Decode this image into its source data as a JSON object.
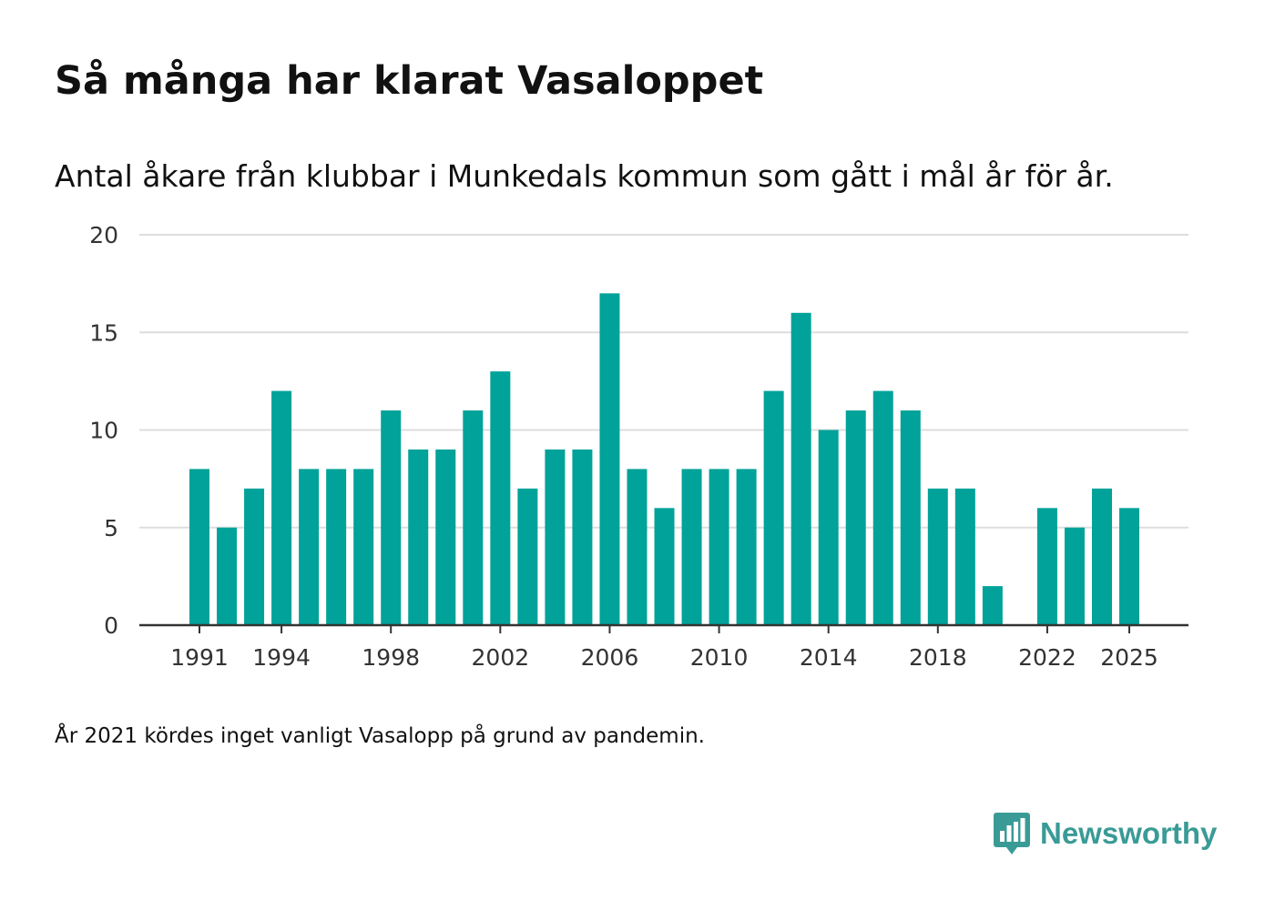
{
  "header": {
    "title": "Så många har klarat Vasaloppet",
    "subtitle": "Antal åkare från klubbar i Munkedals kommun som gått i mål år för år."
  },
  "footer": {
    "note": "År 2021 kördes inget vanligt Vasalopp på grund av pandemin.",
    "logo_text": "Newsworthy",
    "logo_icon": "bar-chart-bubble-icon"
  },
  "colors": {
    "bar": "#00a29a",
    "grid": "#dddddd",
    "axis": "#333333",
    "text": "#111111",
    "tick_text": "#333333",
    "logo": "#3a9b96"
  },
  "chart_data": {
    "type": "bar",
    "title": "Så många har klarat Vasaloppet",
    "subtitle": "Antal åkare från klubbar i Munkedals kommun som gått i mål år för år.",
    "xlabel": "",
    "ylabel": "",
    "categories": [
      1991,
      1992,
      1993,
      1994,
      1995,
      1996,
      1997,
      1998,
      1999,
      2000,
      2001,
      2002,
      2003,
      2004,
      2005,
      2006,
      2007,
      2008,
      2009,
      2010,
      2011,
      2012,
      2013,
      2014,
      2015,
      2016,
      2017,
      2018,
      2019,
      2020,
      2021,
      2022,
      2023,
      2024,
      2025
    ],
    "values": [
      8,
      5,
      7,
      12,
      8,
      8,
      8,
      11,
      9,
      9,
      11,
      13,
      7,
      9,
      9,
      17,
      8,
      6,
      8,
      8,
      8,
      12,
      16,
      10,
      11,
      12,
      11,
      7,
      7,
      2,
      null,
      6,
      5,
      7,
      6
    ],
    "ylim": [
      0,
      20
    ],
    "yticks": [
      0,
      5,
      10,
      15,
      20
    ],
    "xticks": [
      1991,
      1994,
      1998,
      2002,
      2006,
      2010,
      2014,
      2018,
      2022,
      2025
    ],
    "grid": true
  }
}
